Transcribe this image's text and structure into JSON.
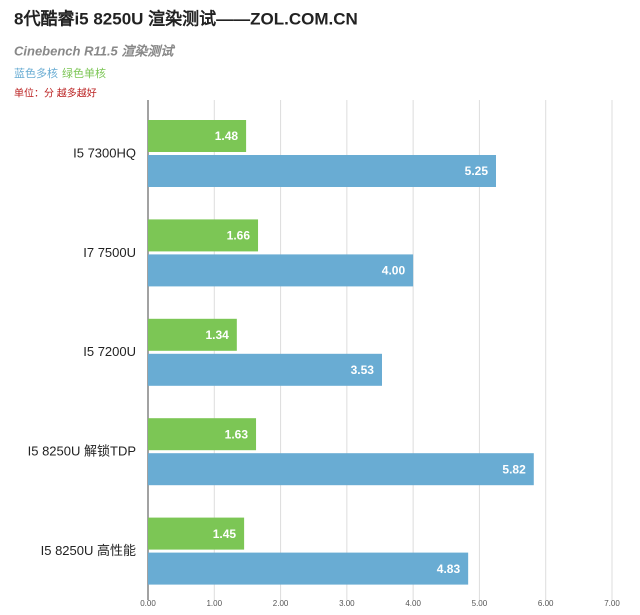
{
  "chart_data": {
    "type": "hbar",
    "title": "8代酷睿i5 8250U 渲染测试——ZOL.COM.CN",
    "subtitle": "Cinebench R11.5 渲染测试",
    "note": "单位：分 越多越好",
    "categories": [
      "I5 7300HQ",
      "I7 7500U",
      "I5 7200U",
      "I5 8250U 解锁TDP",
      "I5 8250U 高性能"
    ],
    "series": [
      {
        "name": "绿色单核",
        "color": "#7cc655",
        "values": [
          1.48,
          1.66,
          1.34,
          1.63,
          1.45
        ]
      },
      {
        "name": "蓝色多核",
        "color": "#69acd3",
        "values": [
          5.25,
          4,
          3.53,
          5.82,
          4.83
        ],
        "value_labels": [
          "5.25",
          "4.00",
          "3.53",
          "5.82",
          "4.83"
        ]
      }
    ],
    "xlim": [
      0,
      7
    ],
    "xticks": [
      {
        "value": 0,
        "label": "0.00"
      },
      {
        "value": 1,
        "label": "1.00"
      },
      {
        "value": 2,
        "label": "2.00"
      },
      {
        "value": 3,
        "label": "3.00"
      },
      {
        "value": 4,
        "label": "4.00"
      },
      {
        "value": 5,
        "label": "5.00"
      },
      {
        "value": 6,
        "label": "6.00"
      },
      {
        "value": 7,
        "label": "7.00"
      }
    ],
    "grid": true
  }
}
